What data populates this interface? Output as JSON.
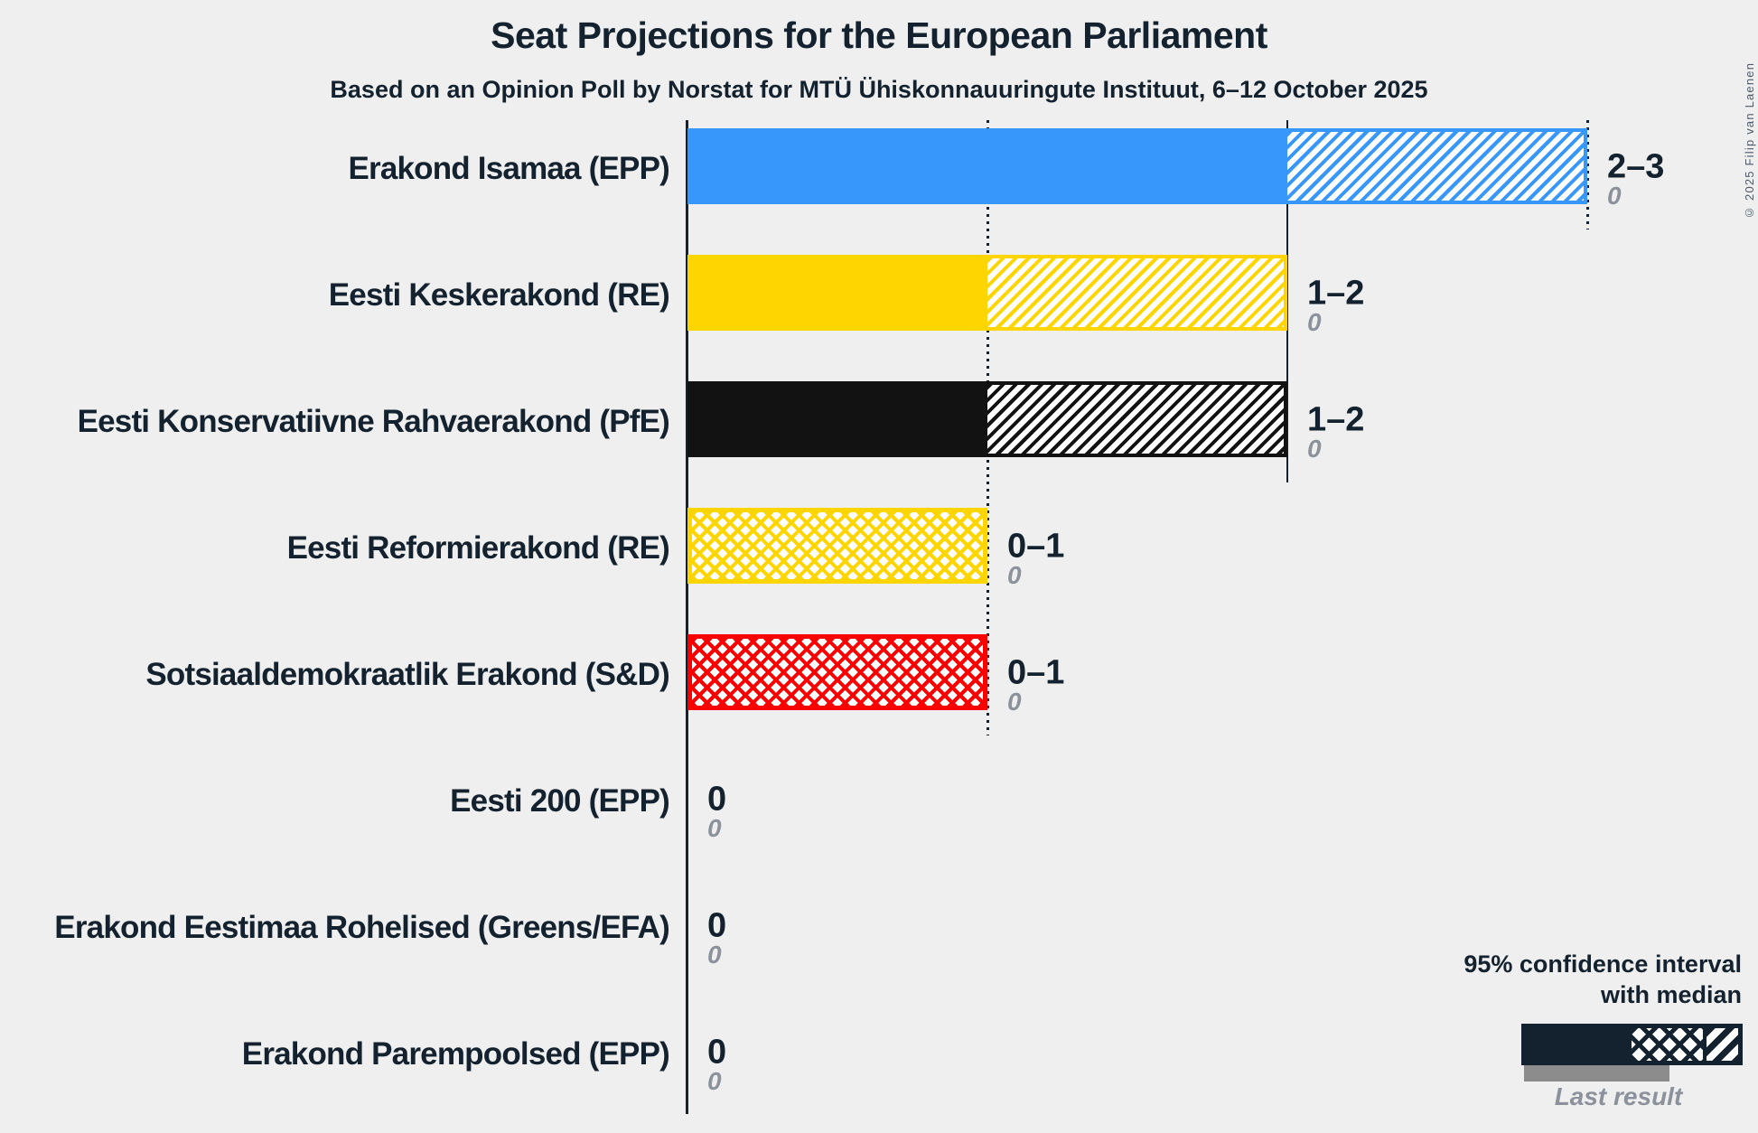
{
  "colors": {
    "ink": "#13222e",
    "muted": "#8b929b",
    "gray": "#8c8c8c",
    "bg": "#efefef"
  },
  "copyright": "© 2025 Filip van Laenen",
  "chart_data": {
    "type": "bar",
    "title": "Seat Projections for the European Parliament",
    "subtitle": "Based on an Opinion Poll by Norstat for MTÜ Ühiskonnauuringute Instituut, 6–12 October 2025",
    "x_axis": {
      "unit": "seats",
      "min": 0,
      "max": 3,
      "gridlines": [
        {
          "seat": 1,
          "style": "dotted"
        },
        {
          "seat": 2,
          "style": "solid"
        },
        {
          "seat": 3,
          "style": "dotted"
        }
      ]
    },
    "parties": [
      {
        "label": "Erakond Isamaa (EPP)",
        "color": "#3797fa",
        "low": 2,
        "median": 2,
        "high": 3,
        "ci_label": "2–3",
        "last_result": 0,
        "last_result_label": "0"
      },
      {
        "label": "Eesti Keskerakond (RE)",
        "color": "#ffd500",
        "low": 1,
        "median": 1,
        "high": 2,
        "ci_label": "1–2",
        "last_result": 0,
        "last_result_label": "0"
      },
      {
        "label": "Eesti Konservatiivne Rahvaerakond (PfE)",
        "color": "#121212",
        "low": 1,
        "median": 1,
        "high": 2,
        "ci_label": "1–2",
        "last_result": 0,
        "last_result_label": "0"
      },
      {
        "label": "Eesti Reformierakond (RE)",
        "color": "#ffd500",
        "low": 0,
        "median": 1,
        "high": 1,
        "ci_label": "0–1",
        "last_result": 0,
        "last_result_label": "0"
      },
      {
        "label": "Sotsiaaldemokraatlik Erakond (S&D)",
        "color": "#fb0000",
        "low": 0,
        "median": 1,
        "high": 1,
        "ci_label": "0–1",
        "last_result": 0,
        "last_result_label": "0"
      },
      {
        "label": "Eesti 200 (EPP)",
        "low": 0,
        "median": 0,
        "high": 0,
        "ci_label": "0",
        "last_result": 0,
        "last_result_label": "0"
      },
      {
        "label": "Erakond Eestimaa Rohelised (Greens/EFA)",
        "low": 0,
        "median": 0,
        "high": 0,
        "ci_label": "0",
        "last_result": 0,
        "last_result_label": "0"
      },
      {
        "label": "Erakond Parempoolsed (EPP)",
        "low": 0,
        "median": 0,
        "high": 0,
        "ci_label": "0",
        "last_result": 0,
        "last_result_label": "0"
      }
    ],
    "legend": {
      "ci_line1": "95% confidence interval",
      "ci_line2": "with median",
      "last_result_label": "Last result"
    }
  }
}
